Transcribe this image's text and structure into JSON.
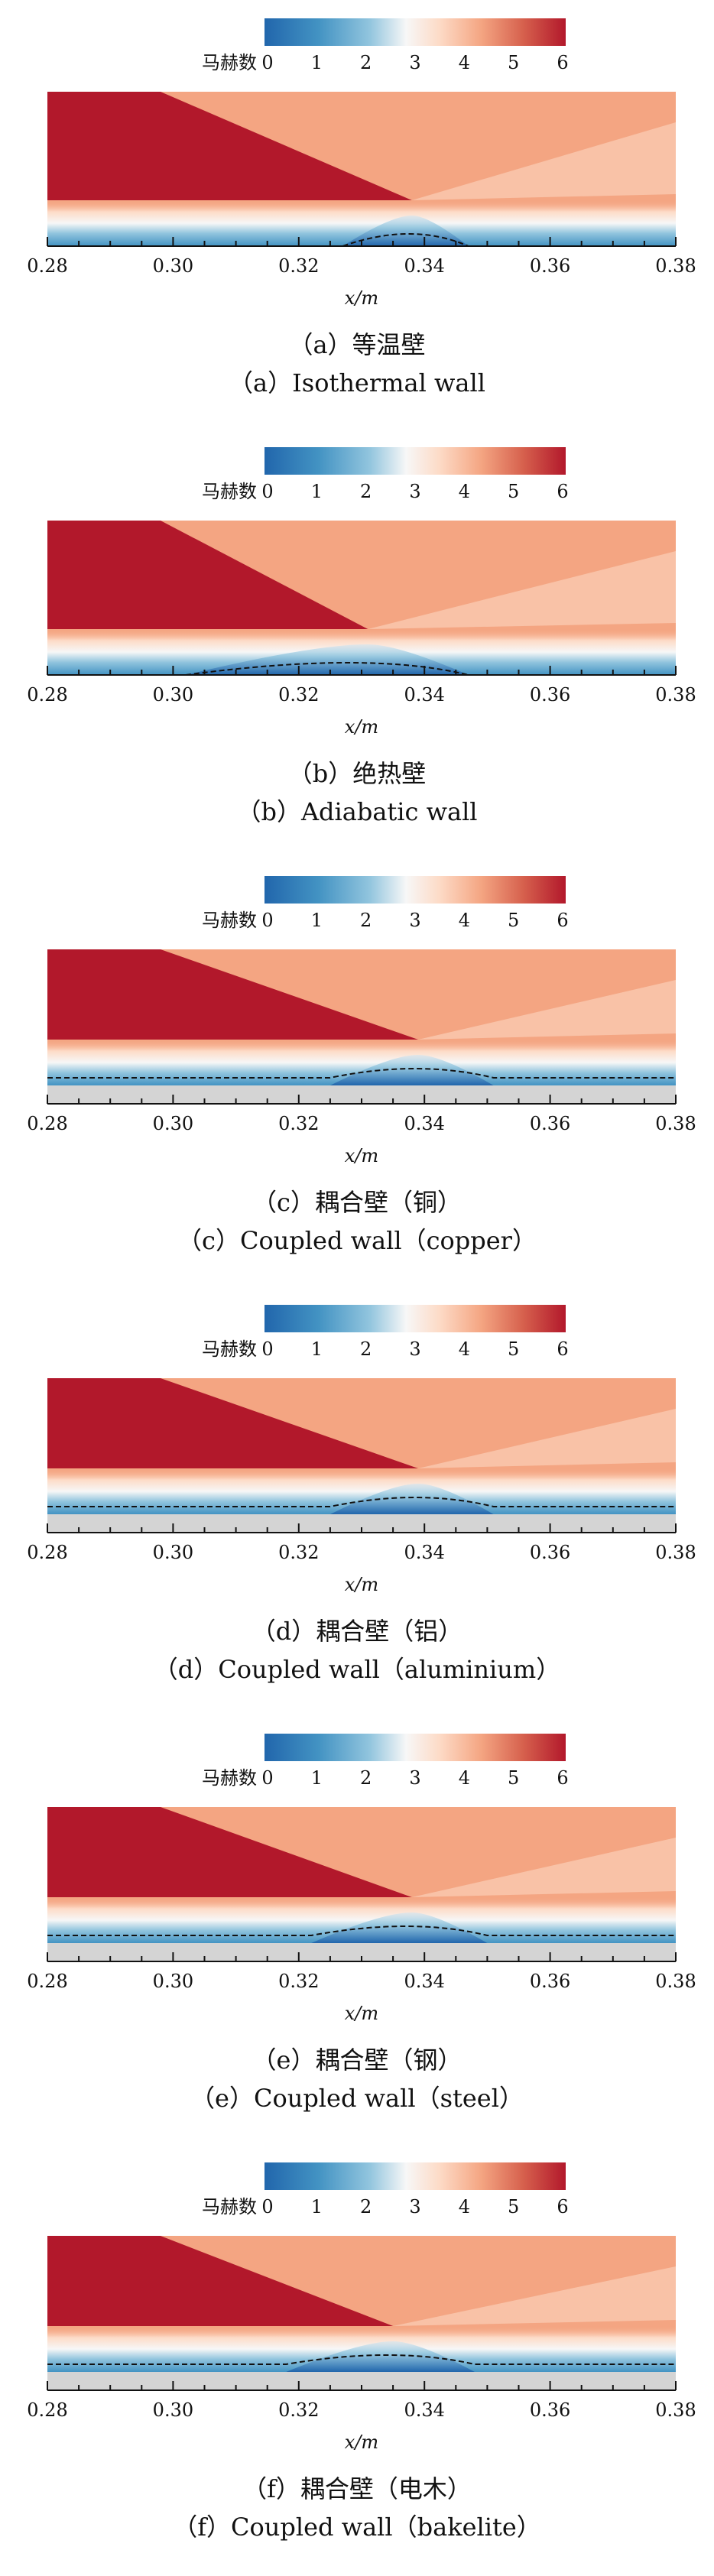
{
  "chart_data": [
    {
      "type": "heatmap",
      "panel_id": "a",
      "colorbar": {
        "label": "马赫数",
        "ticks": [
          "0",
          "1",
          "2",
          "3",
          "4",
          "5",
          "6"
        ],
        "range": [
          0,
          6
        ]
      },
      "xlabel": "x/m",
      "xticks": [
        "0.28",
        "0.30",
        "0.32",
        "0.34",
        "0.36",
        "0.38"
      ],
      "xlim": [
        0.28,
        0.38
      ],
      "caption_cn": "（a）等温壁",
      "caption_en": "（a）Isothermal wall",
      "wall": "isothermal",
      "solid_layer": false,
      "shock_impingement_x": 0.338,
      "separation_start_x": 0.327,
      "separation_end_x": 0.347
    },
    {
      "type": "heatmap",
      "panel_id": "b",
      "colorbar": {
        "label": "马赫数",
        "ticks": [
          "0",
          "1",
          "2",
          "3",
          "4",
          "5",
          "6"
        ],
        "range": [
          0,
          6
        ]
      },
      "xlabel": "x/m",
      "xticks": [
        "0.28",
        "0.30",
        "0.32",
        "0.34",
        "0.36",
        "0.38"
      ],
      "xlim": [
        0.28,
        0.38
      ],
      "caption_cn": "（b）绝热壁",
      "caption_en": "（b）Adiabatic wall",
      "wall": "adiabatic",
      "solid_layer": false,
      "shock_impingement_x": 0.331,
      "separation_start_x": 0.302,
      "separation_end_x": 0.347
    },
    {
      "type": "heatmap",
      "panel_id": "c",
      "colorbar": {
        "label": "马赫数",
        "ticks": [
          "0",
          "1",
          "2",
          "3",
          "4",
          "5",
          "6"
        ],
        "range": [
          0,
          6
        ]
      },
      "xlabel": "x/m",
      "xticks": [
        "0.28",
        "0.30",
        "0.32",
        "0.34",
        "0.36",
        "0.38"
      ],
      "xlim": [
        0.28,
        0.38
      ],
      "caption_cn": "（c）耦合壁（铜）",
      "caption_en": "（c）Coupled wall（copper）",
      "wall": "coupled-copper",
      "solid_layer": true,
      "shock_impingement_x": 0.339,
      "separation_start_x": 0.325,
      "separation_end_x": 0.351
    },
    {
      "type": "heatmap",
      "panel_id": "d",
      "colorbar": {
        "label": "马赫数",
        "ticks": [
          "0",
          "1",
          "2",
          "3",
          "4",
          "5",
          "6"
        ],
        "range": [
          0,
          6
        ]
      },
      "xlabel": "x/m",
      "xticks": [
        "0.28",
        "0.30",
        "0.32",
        "0.34",
        "0.36",
        "0.38"
      ],
      "xlim": [
        0.28,
        0.38
      ],
      "caption_cn": "（d）耦合壁（铝）",
      "caption_en": "（d）Coupled wall（aluminium）",
      "wall": "coupled-aluminium",
      "solid_layer": true,
      "shock_impingement_x": 0.339,
      "separation_start_x": 0.325,
      "separation_end_x": 0.351
    },
    {
      "type": "heatmap",
      "panel_id": "e",
      "colorbar": {
        "label": "马赫数",
        "ticks": [
          "0",
          "1",
          "2",
          "3",
          "4",
          "5",
          "6"
        ],
        "range": [
          0,
          6
        ]
      },
      "xlabel": "x/m",
      "xticks": [
        "0.28",
        "0.30",
        "0.32",
        "0.34",
        "0.36",
        "0.38"
      ],
      "xlim": [
        0.28,
        0.38
      ],
      "caption_cn": "（e）耦合壁（钢）",
      "caption_en": "（e）Coupled wall（steel）",
      "wall": "coupled-steel",
      "solid_layer": true,
      "shock_impingement_x": 0.338,
      "separation_start_x": 0.322,
      "separation_end_x": 0.35
    },
    {
      "type": "heatmap",
      "panel_id": "f",
      "colorbar": {
        "label": "马赫数",
        "ticks": [
          "0",
          "1",
          "2",
          "3",
          "4",
          "5",
          "6"
        ],
        "range": [
          0,
          6
        ]
      },
      "xlabel": "x/m",
      "xticks": [
        "0.28",
        "0.30",
        "0.32",
        "0.34",
        "0.36",
        "0.38"
      ],
      "xlim": [
        0.28,
        0.38
      ],
      "caption_cn": "（f）耦合壁（电木）",
      "caption_en": "（f）Coupled wall（bakelite）",
      "wall": "coupled-bakelite",
      "solid_layer": true,
      "shock_impingement_x": 0.335,
      "separation_start_x": 0.318,
      "separation_end_x": 0.348
    }
  ],
  "colors": {
    "red_dark": "#b2182b",
    "red": "#d6604d",
    "orange": "#f4a582",
    "peach": "#fddbc7",
    "white": "#f7f7f7",
    "light_blue": "#d1e5f0",
    "blue": "#92c5de",
    "mid_blue": "#4393c3",
    "dark_blue": "#2166ac",
    "solid": "#d4d4d4"
  }
}
